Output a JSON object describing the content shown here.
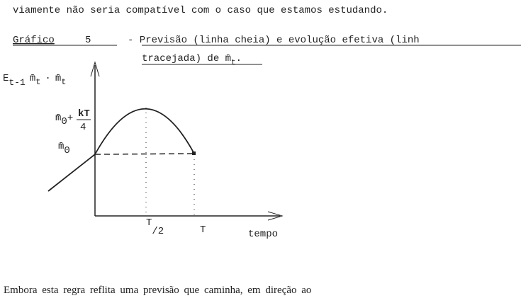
{
  "intro_line": "viamente não seria compatível com o caso que estamos estudando.",
  "caption": {
    "label": "Gráfico",
    "number": "5",
    "line1": "- Previsão (linha cheia) e evolução efetiva (linh",
    "line2": "tracejada) de m̄",
    "line2_sub": "t",
    "line2_end": "."
  },
  "diagram": {
    "y_axis_label": {
      "e": "E",
      "e_sub": "t-1",
      "m1": "m̄",
      "m1_sub": "t",
      "sep": "·",
      "m2": "m̄",
      "m2_sub": "t"
    },
    "peak_label": {
      "m": "m̄",
      "m_sub": "0",
      "plus": "+",
      "num": "kT",
      "den": "4"
    },
    "start_label": {
      "m": "m̄",
      "m_sub": "0"
    },
    "half_label": {
      "num": "T",
      "den": "/2"
    },
    "end_label": "T",
    "x_axis_label": "tempo"
  },
  "closing_line": "Embora esta regra reflita uma previsão que caminha, em direção ao"
}
